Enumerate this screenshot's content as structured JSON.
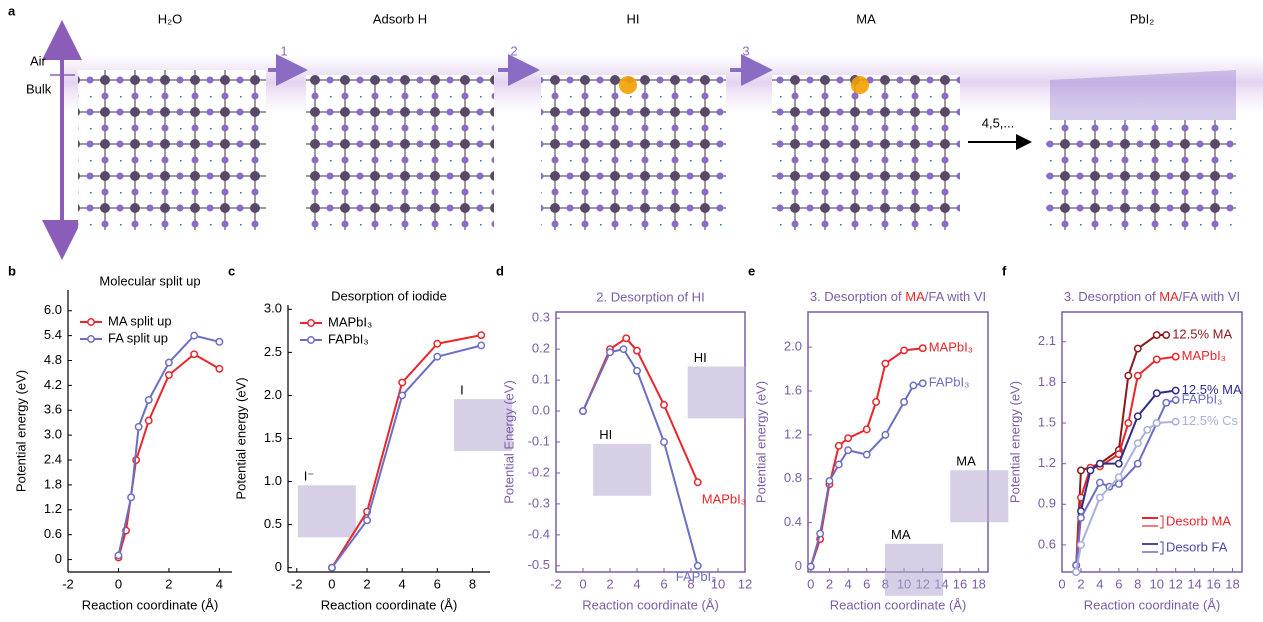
{
  "panel_a": {
    "label": "a",
    "steps": [
      "H₂O",
      "Adsorb H",
      "HI",
      "MA",
      "PbI₂"
    ],
    "arrows": [
      "1",
      "2",
      "3",
      "4,5,..."
    ],
    "air": "Air",
    "bulk": "Bulk"
  },
  "chart_data": [
    {
      "type": "line",
      "label": "b",
      "title": "Molecular split up",
      "x_label": "Reaction coordinate (Å)",
      "y_label": "Potential energy (eV)",
      "xlim": [
        -2,
        4.5
      ],
      "xticks": [
        -2,
        0,
        2,
        4
      ],
      "ylim": [
        -0.3,
        6.5
      ],
      "yticks": [
        0,
        0.6,
        1.2,
        1.8,
        2.4,
        {
          "value": 3,
          "label": "3.0"
        },
        3.6,
        4.2,
        4.8,
        5.4,
        {
          "value": 6,
          "label": "6.0"
        }
      ],
      "legend": "upper left",
      "axis_color": "#000000",
      "frame": false,
      "series": [
        {
          "name": "MA split up",
          "color": "#e8262b",
          "x": [
            0,
            0.3,
            0.7,
            1.2,
            2,
            3,
            4
          ],
          "values": [
            0.05,
            0.7,
            2.4,
            3.35,
            4.45,
            4.95,
            4.6
          ]
        },
        {
          "name": "FA split up",
          "color": "#6b6fc4",
          "x": [
            0,
            0.5,
            0.8,
            1.2,
            2,
            3,
            4
          ],
          "values": [
            0.1,
            1.5,
            3.2,
            3.85,
            4.75,
            5.4,
            5.25
          ]
        }
      ]
    },
    {
      "type": "line",
      "label": "c",
      "title": "Desorption of iodide",
      "x_label": "Reaction coordinate (Å)",
      "y_label": "Potential energy (eV)",
      "xlim": [
        -2.5,
        9
      ],
      "xticks": [
        -2,
        0,
        2,
        4,
        6,
        8
      ],
      "ylim": [
        -0.05,
        3.05
      ],
      "yticks": [
        0,
        0.5,
        {
          "value": 1,
          "label": "1.0"
        },
        1.5,
        {
          "value": 2,
          "label": "2.0"
        },
        2.5,
        {
          "value": 3,
          "label": "3.0"
        }
      ],
      "legend": "upper left",
      "axis_color": "#000000",
      "frame": false,
      "annotations": [
        "I⁻",
        "I"
      ],
      "series": [
        {
          "name": "MAPbI₃",
          "color": "#e8262b",
          "x": [
            0,
            2,
            4,
            6,
            8.5
          ],
          "values": [
            0,
            0.65,
            2.15,
            2.6,
            2.7
          ]
        },
        {
          "name": "FAPbI₃",
          "color": "#6b6fc4",
          "x": [
            0,
            2,
            4,
            6,
            8.5
          ],
          "values": [
            0,
            0.55,
            2.0,
            2.45,
            2.58
          ]
        }
      ]
    },
    {
      "type": "line",
      "label": "d",
      "title": "2. Desorption of HI",
      "x_label": "Reaction coordinate (Å)",
      "y_label": "Potential Energy (eV)",
      "xlim": [
        -2,
        12
      ],
      "xticks": [
        -2,
        0,
        2,
        4,
        6,
        8,
        10,
        12
      ],
      "ylim": [
        -0.52,
        0.32
      ],
      "yticks": [
        -0.5,
        -0.4,
        -0.3,
        -0.2,
        -0.1,
        {
          "value": 0,
          "label": "0.0"
        },
        0.1,
        0.2,
        0.3
      ],
      "axis_color": "#7b5ea7",
      "frame": true,
      "end_labels": true,
      "annotations": [
        "HI",
        "HI"
      ],
      "series": [
        {
          "name": "MAPbI₃",
          "color": "#e8262b",
          "x": [
            0,
            2,
            3.2,
            4,
            6,
            8.5
          ],
          "values": [
            0,
            0.2,
            0.235,
            0.195,
            0.02,
            -0.23
          ]
        },
        {
          "name": "FAPbI₃",
          "color": "#6b6fc4",
          "x": [
            0,
            2,
            3,
            4,
            6,
            8.5
          ],
          "values": [
            0,
            0.19,
            0.2,
            0.13,
            -0.1,
            -0.5
          ]
        }
      ]
    },
    {
      "type": "line",
      "label": "e",
      "title_parts": [
        "3. Desorption of ",
        "MA",
        "/FA with VI"
      ],
      "title_part_colors": [
        "#7b5ea7",
        "#e8262b",
        "#7b5ea7"
      ],
      "x_label": "Reaction coordinate (Å)",
      "y_label": "Potential energy (eV)",
      "xlim": [
        -0.3,
        19
      ],
      "xticks": [
        0,
        2,
        4,
        6,
        8,
        10,
        12,
        14,
        16,
        18
      ],
      "ylim": [
        -0.05,
        2.32
      ],
      "yticks": [
        0,
        0.4,
        0.8,
        1.2,
        1.6,
        {
          "value": 2,
          "label": "2.0"
        }
      ],
      "axis_color": "#7b5ea7",
      "frame": true,
      "end_labels": true,
      "annotations": [
        "MA",
        "MA"
      ],
      "series": [
        {
          "name": "MAPbI₃",
          "color": "#e8262b",
          "x": [
            0,
            1,
            2,
            3,
            4,
            6,
            7,
            8,
            10,
            12
          ],
          "values": [
            0,
            0.25,
            0.75,
            1.1,
            1.17,
            1.25,
            1.5,
            1.85,
            1.97,
            1.99
          ]
        },
        {
          "name": "FAPbI₃",
          "color": "#6b6fc4",
          "x": [
            0,
            1,
            2,
            3,
            4,
            6,
            8,
            10,
            11,
            12
          ],
          "values": [
            0,
            0.3,
            0.78,
            0.93,
            1.06,
            1.02,
            1.2,
            1.5,
            1.65,
            1.67
          ]
        }
      ]
    },
    {
      "type": "line",
      "label": "f",
      "title_parts": [
        "3. Desorption of ",
        "MA",
        "/FA with VI"
      ],
      "title_part_colors": [
        "#7b5ea7",
        "#e8262b",
        "#7b5ea7"
      ],
      "x_label": "Reaction coordinate (Å)",
      "y_label": "Potential energy (eV)",
      "xlim": [
        0,
        19
      ],
      "xticks": [
        0,
        2,
        4,
        6,
        8,
        10,
        12,
        14,
        16,
        18
      ],
      "ylim": [
        0.4,
        2.32
      ],
      "yticks": [
        0.6,
        0.9,
        1.2,
        1.5,
        1.8,
        2.1
      ],
      "axis_color": "#7b5ea7",
      "frame": true,
      "end_labels": true,
      "legend_groups": [
        {
          "name": "Desorb MA",
          "color": "#e8262b"
        },
        {
          "name": "Desorb FA",
          "color": "#4a4aa8"
        }
      ],
      "series": [
        {
          "name": "12.5% MA",
          "color": "#8b1a1a",
          "x": [
            1.5,
            2,
            4,
            6,
            7,
            8,
            10,
            11
          ],
          "values": [
            0.45,
            1.15,
            1.2,
            1.3,
            1.85,
            2.05,
            2.15,
            2.15
          ]
        },
        {
          "name": "MAPbI₃",
          "color": "#e8262b",
          "x": [
            1.5,
            2,
            3,
            4,
            6,
            7,
            8,
            10,
            12
          ],
          "values": [
            0.45,
            0.95,
            1.17,
            1.18,
            1.27,
            1.5,
            1.85,
            1.97,
            1.99
          ]
        },
        {
          "name": "12.5% MA",
          "color": "#2e2e8a",
          "x": [
            1.5,
            2,
            3,
            4,
            6,
            8,
            10,
            12
          ],
          "values": [
            0.4,
            0.85,
            1.15,
            1.2,
            1.2,
            1.55,
            1.72,
            1.74
          ]
        },
        {
          "name": "FAPbI₃",
          "color": "#6b6fc4",
          "x": [
            1.5,
            2,
            4,
            5,
            6,
            8,
            10,
            11,
            12
          ],
          "values": [
            0.45,
            0.8,
            1.06,
            1.03,
            1.05,
            1.2,
            1.5,
            1.65,
            1.67
          ]
        },
        {
          "name": "12.5% Cs",
          "color": "#aab0dd",
          "x": [
            1.5,
            2,
            4,
            6,
            8,
            9,
            10,
            12
          ],
          "values": [
            0.4,
            0.6,
            0.95,
            1.1,
            1.35,
            1.45,
            1.5,
            1.51
          ]
        }
      ]
    }
  ]
}
